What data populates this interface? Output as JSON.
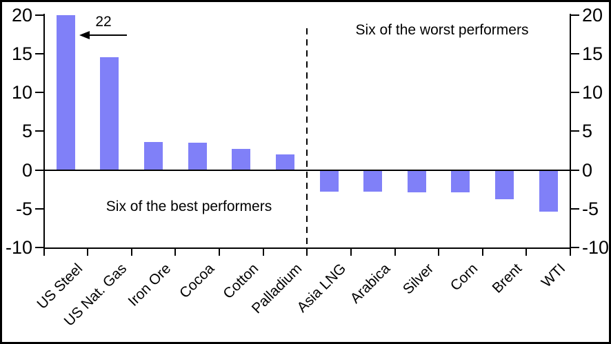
{
  "chart_data": {
    "type": "bar",
    "categories": [
      "US Steel",
      "US Nat. Gas",
      "Iron Ore",
      "Cocoa",
      "Cotton",
      "Palladium",
      "Asia LNG",
      "Arabica",
      "Silver",
      "Corn",
      "Brent",
      "WTI"
    ],
    "values": [
      22,
      14.5,
      3.6,
      3.5,
      2.7,
      2.0,
      -2.8,
      -2.8,
      -2.9,
      -2.9,
      -3.8,
      -5.4
    ],
    "clipped_bar": {
      "category": "US Steel",
      "actual_value": 22,
      "clipped_at": 20,
      "label": "22"
    },
    "ylim": [
      -10,
      20
    ],
    "yticks": [
      20,
      15,
      10,
      5,
      0,
      -5,
      -10
    ],
    "y_axis_sides": "both",
    "grid": "off",
    "zero_line": true,
    "separator_after_index": 5,
    "annotations": {
      "best_group": "Six of the best performers",
      "worst_group": "Six of the worst performers",
      "clipped_value_label": "22"
    },
    "colors": {
      "bar": "#8080F8",
      "axis": "#000000",
      "text": "#000000",
      "background": "#FFFFFF"
    }
  }
}
